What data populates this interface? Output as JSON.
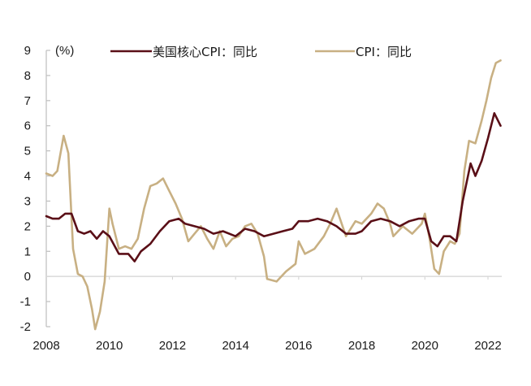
{
  "chart_data": {
    "type": "line",
    "title": "",
    "ylabel": "(%)",
    "xlabel": "",
    "ylim": [
      -2,
      9
    ],
    "xlim": [
      2008,
      2022.4
    ],
    "yticks": [
      -2,
      -1,
      0,
      1,
      2,
      3,
      4,
      5,
      6,
      7,
      8,
      9
    ],
    "xticks": [
      2008,
      2010,
      2012,
      2014,
      2016,
      2018,
      2020,
      2022
    ],
    "grid": false,
    "zero_line": true,
    "legend_position": "top",
    "series": [
      {
        "name": "美国核心CPI：同比",
        "color": "#5a0f17",
        "points": [
          [
            2008.0,
            2.4
          ],
          [
            2008.2,
            2.3
          ],
          [
            2008.4,
            2.3
          ],
          [
            2008.6,
            2.5
          ],
          [
            2008.8,
            2.5
          ],
          [
            2009.0,
            1.8
          ],
          [
            2009.2,
            1.7
          ],
          [
            2009.4,
            1.8
          ],
          [
            2009.6,
            1.5
          ],
          [
            2009.8,
            1.8
          ],
          [
            2010.0,
            1.6
          ],
          [
            2010.3,
            0.9
          ],
          [
            2010.6,
            0.9
          ],
          [
            2010.8,
            0.6
          ],
          [
            2011.0,
            1.0
          ],
          [
            2011.3,
            1.3
          ],
          [
            2011.6,
            1.8
          ],
          [
            2011.9,
            2.2
          ],
          [
            2012.2,
            2.3
          ],
          [
            2012.4,
            2.1
          ],
          [
            2012.7,
            2.0
          ],
          [
            2013.0,
            1.9
          ],
          [
            2013.3,
            1.7
          ],
          [
            2013.6,
            1.8
          ],
          [
            2014.0,
            1.6
          ],
          [
            2014.3,
            1.9
          ],
          [
            2014.6,
            1.8
          ],
          [
            2014.9,
            1.6
          ],
          [
            2015.2,
            1.7
          ],
          [
            2015.5,
            1.8
          ],
          [
            2015.8,
            1.9
          ],
          [
            2016.0,
            2.2
          ],
          [
            2016.3,
            2.2
          ],
          [
            2016.6,
            2.3
          ],
          [
            2016.9,
            2.2
          ],
          [
            2017.2,
            2.0
          ],
          [
            2017.5,
            1.7
          ],
          [
            2017.8,
            1.7
          ],
          [
            2018.0,
            1.8
          ],
          [
            2018.3,
            2.2
          ],
          [
            2018.6,
            2.3
          ],
          [
            2018.9,
            2.2
          ],
          [
            2019.2,
            2.0
          ],
          [
            2019.5,
            2.2
          ],
          [
            2019.8,
            2.3
          ],
          [
            2020.0,
            2.3
          ],
          [
            2020.2,
            1.4
          ],
          [
            2020.4,
            1.2
          ],
          [
            2020.6,
            1.6
          ],
          [
            2020.8,
            1.6
          ],
          [
            2021.0,
            1.4
          ],
          [
            2021.2,
            3.0
          ],
          [
            2021.45,
            4.5
          ],
          [
            2021.6,
            4.0
          ],
          [
            2021.8,
            4.6
          ],
          [
            2022.0,
            5.5
          ],
          [
            2022.2,
            6.5
          ],
          [
            2022.4,
            6.0
          ]
        ]
      },
      {
        "name": "CPI：同比",
        "color": "#c8b083",
        "points": [
          [
            2008.0,
            4.1
          ],
          [
            2008.2,
            4.0
          ],
          [
            2008.35,
            4.2
          ],
          [
            2008.55,
            5.6
          ],
          [
            2008.7,
            4.9
          ],
          [
            2008.85,
            1.1
          ],
          [
            2009.0,
            0.1
          ],
          [
            2009.15,
            0.0
          ],
          [
            2009.3,
            -0.4
          ],
          [
            2009.45,
            -1.3
          ],
          [
            2009.55,
            -2.1
          ],
          [
            2009.7,
            -1.4
          ],
          [
            2009.85,
            -0.2
          ],
          [
            2010.0,
            2.7
          ],
          [
            2010.1,
            2.1
          ],
          [
            2010.3,
            1.1
          ],
          [
            2010.5,
            1.2
          ],
          [
            2010.7,
            1.1
          ],
          [
            2010.9,
            1.5
          ],
          [
            2011.1,
            2.7
          ],
          [
            2011.3,
            3.6
          ],
          [
            2011.5,
            3.7
          ],
          [
            2011.7,
            3.9
          ],
          [
            2011.9,
            3.4
          ],
          [
            2012.1,
            2.9
          ],
          [
            2012.3,
            2.3
          ],
          [
            2012.5,
            1.4
          ],
          [
            2012.7,
            1.7
          ],
          [
            2012.9,
            2.0
          ],
          [
            2013.1,
            1.5
          ],
          [
            2013.3,
            1.1
          ],
          [
            2013.5,
            1.8
          ],
          [
            2013.7,
            1.2
          ],
          [
            2013.9,
            1.5
          ],
          [
            2014.1,
            1.6
          ],
          [
            2014.3,
            2.0
          ],
          [
            2014.5,
            2.1
          ],
          [
            2014.7,
            1.7
          ],
          [
            2014.9,
            0.8
          ],
          [
            2015.0,
            -0.1
          ],
          [
            2015.3,
            -0.2
          ],
          [
            2015.6,
            0.2
          ],
          [
            2015.9,
            0.5
          ],
          [
            2016.0,
            1.4
          ],
          [
            2016.2,
            0.9
          ],
          [
            2016.5,
            1.1
          ],
          [
            2016.8,
            1.6
          ],
          [
            2017.0,
            2.1
          ],
          [
            2017.2,
            2.7
          ],
          [
            2017.5,
            1.6
          ],
          [
            2017.8,
            2.2
          ],
          [
            2018.0,
            2.1
          ],
          [
            2018.3,
            2.5
          ],
          [
            2018.5,
            2.9
          ],
          [
            2018.7,
            2.7
          ],
          [
            2018.9,
            2.1
          ],
          [
            2019.0,
            1.6
          ],
          [
            2019.3,
            2.0
          ],
          [
            2019.6,
            1.7
          ],
          [
            2019.9,
            2.1
          ],
          [
            2020.0,
            2.5
          ],
          [
            2020.15,
            1.5
          ],
          [
            2020.3,
            0.3
          ],
          [
            2020.45,
            0.1
          ],
          [
            2020.6,
            1.0
          ],
          [
            2020.8,
            1.4
          ],
          [
            2020.95,
            1.3
          ],
          [
            2021.1,
            1.7
          ],
          [
            2021.25,
            4.2
          ],
          [
            2021.4,
            5.4
          ],
          [
            2021.6,
            5.3
          ],
          [
            2021.8,
            6.2
          ],
          [
            2021.95,
            7.0
          ],
          [
            2022.1,
            7.9
          ],
          [
            2022.25,
            8.5
          ],
          [
            2022.4,
            8.6
          ]
        ]
      }
    ]
  },
  "legend": {
    "items": [
      {
        "label": "美国核心CPI：同比",
        "color": "#5a0f17"
      },
      {
        "label": "CPI：同比",
        "color": "#c8b083"
      }
    ]
  },
  "axis": {
    "y_unit": "(%)",
    "y_labels": [
      "9",
      "8",
      "7",
      "6",
      "5",
      "4",
      "3",
      "2",
      "1",
      "0",
      "-1",
      "-2"
    ],
    "x_labels": [
      "2008",
      "2010",
      "2012",
      "2014",
      "2016",
      "2018",
      "2020",
      "2022"
    ]
  }
}
